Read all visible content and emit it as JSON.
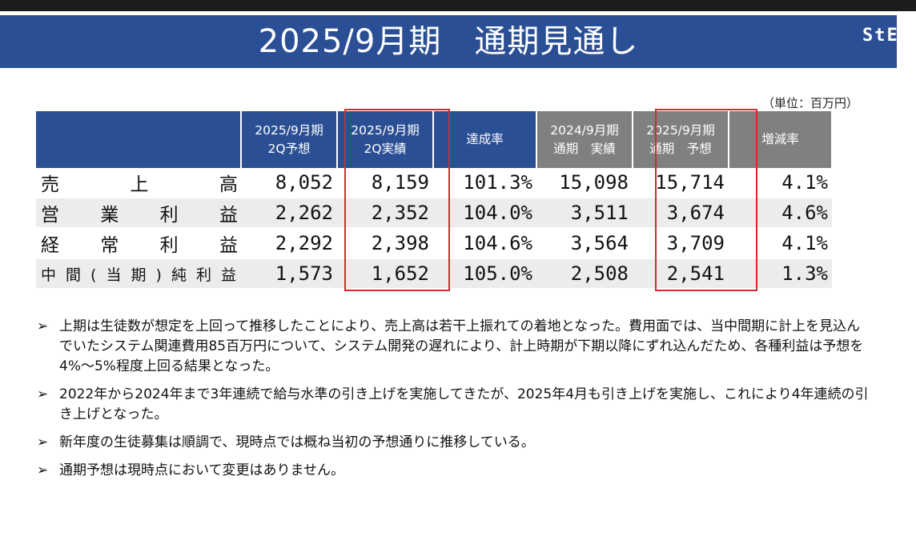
{
  "title": "2025/9月期　通期見通し",
  "logo": "StEP",
  "unit_label": "（単位：百万円）",
  "table": {
    "headers": [
      [
        "2025/9月期",
        "2Q予想"
      ],
      [
        "2025/9月期",
        "2Q実績"
      ],
      [
        "達成率"
      ],
      [
        "2024/9月期",
        "通期　実績"
      ],
      [
        "2025/9月期",
        "通期　予想"
      ],
      [
        "増減率"
      ]
    ],
    "rows": [
      {
        "label": "売上高",
        "values": [
          "8,052",
          "8,159",
          "101.3%",
          "15,098",
          "15,714",
          "4.1%"
        ]
      },
      {
        "label": "営業利益",
        "values": [
          "2,262",
          "2,352",
          "104.0%",
          "3,511",
          "3,674",
          "4.6%"
        ]
      },
      {
        "label": "経常利益",
        "values": [
          "2,292",
          "2,398",
          "104.6%",
          "3,564",
          "3,709",
          "4.1%"
        ]
      },
      {
        "label": "中間(当期)純利益",
        "values": [
          "1,573",
          "1,652",
          "105.0%",
          "2,508",
          "2,541",
          "1.3%"
        ]
      }
    ]
  },
  "bullet_marker": "➢",
  "bullets": [
    "上期は生徒数が想定を上回って推移したことにより、売上高は若干上振れての着地となった。費用面では、当中間期に計上を見込んでいたシステム関連費用85百万円について、システム開発の遅れにより、計上時期が下期以降にずれ込んだため、各種利益は予想を4%〜5%程度上回る結果となった。",
    "2022年から2024年まで3年連続で給与水準の引き上げを実施してきたが、2025年4月も引き上げを実施し、これにより4年連続の引き上げとなった。",
    "新年度の生徒募集は順調で、現時点では概ね当初の予想通りに推移している。",
    "通期予想は現時点において変更はありません。"
  ]
}
